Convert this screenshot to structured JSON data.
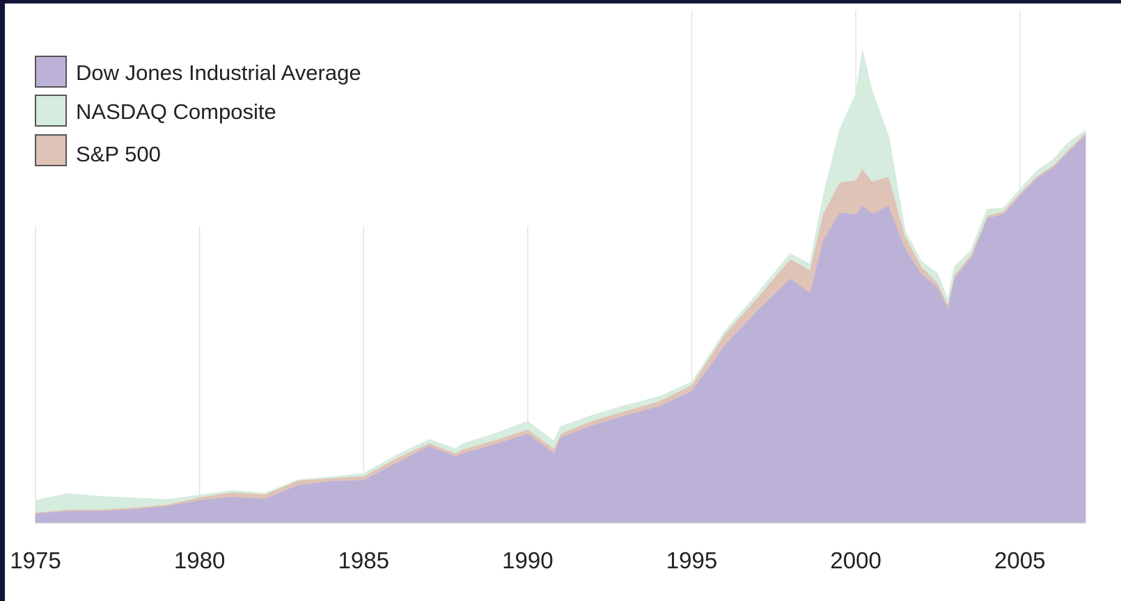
{
  "colors": {
    "dow": "#bcb2d8",
    "nasdaq": "#d6ecde",
    "sp500": "#dfc3b6",
    "legend_border": "#555555",
    "grid": "#e2e2e2",
    "background": "#ffffff"
  },
  "chart_data": {
    "type": "area",
    "stacked": true,
    "title": "",
    "xlabel": "",
    "ylabel": "",
    "xlim": [
      1975,
      2007
    ],
    "ylim": [
      0,
      100
    ],
    "y_axis_shown": false,
    "grid": "vertical lines at x ticks",
    "legend_position": "top-left",
    "x_ticks": [
      1975,
      1980,
      1985,
      1990,
      1995,
      2000,
      2005
    ],
    "x_tick_labels": [
      "1975",
      "1980",
      "1985",
      "1990",
      "1995",
      "2000",
      "2005"
    ],
    "x": [
      1975,
      1976,
      1977,
      1978,
      1979,
      1980,
      1981,
      1982,
      1983,
      1984,
      1985,
      1986,
      1987,
      1987.8,
      1988,
      1989,
      1990,
      1990.8,
      1991,
      1992,
      1993,
      1994,
      1995,
      1996,
      1997,
      1998,
      1998.6,
      1999,
      1999.5,
      2000,
      2000.2,
      2000.5,
      2001,
      2001.5,
      2002,
      2002.5,
      2002.8,
      2003,
      2003.5,
      2004,
      2004.5,
      2005,
      2005.5,
      2006,
      2006.5,
      2007
    ],
    "series": [
      {
        "name": "Dow Jones Industrial Average",
        "values": [
          2.0,
          2.5,
          2.5,
          2.9,
          3.5,
          4.7,
          5.4,
          5.0,
          7.8,
          8.6,
          8.8,
          12.3,
          15.7,
          13.6,
          14.2,
          16.1,
          18.2,
          14.3,
          17.5,
          20.0,
          22.0,
          23.8,
          26.9,
          36.2,
          43.3,
          49.8,
          46.9,
          57.6,
          63.2,
          62.8,
          64.7,
          63.0,
          64.6,
          56.0,
          50.7,
          47.9,
          43.8,
          49.8,
          53.9,
          62.0,
          62.9,
          66.7,
          70.1,
          72.3,
          75.7,
          79.0
        ]
      },
      {
        "name": "S&P 500",
        "values": [
          0.2,
          0.3,
          0.3,
          0.3,
          0.3,
          0.6,
          0.9,
          0.9,
          0.9,
          0.6,
          0.8,
          0.9,
          0.6,
          0.6,
          0.8,
          0.8,
          0.9,
          0.8,
          0.7,
          0.9,
          0.9,
          1.0,
          1.2,
          2.2,
          2.6,
          3.9,
          4.6,
          5.3,
          6.1,
          7.0,
          7.4,
          6.5,
          5.9,
          2.5,
          1.5,
          0.9,
          0.8,
          0.7,
          0.6,
          0.6,
          0.5,
          0.5,
          0.4,
          0.4,
          0.4,
          0.4
        ]
      },
      {
        "name": "NASDAQ Composite",
        "values": [
          2.4,
          3.2,
          2.6,
          1.9,
          1.0,
          0.4,
          0.3,
          0.2,
          0.1,
          0.2,
          0.5,
          0.6,
          0.7,
          0.9,
          1.1,
          1.3,
          1.6,
          1.6,
          1.4,
          1.1,
          1.1,
          0.9,
          0.6,
          0.6,
          0.8,
          1.1,
          1.2,
          3.4,
          10.6,
          17.4,
          24.1,
          18.3,
          8.2,
          1.0,
          1.0,
          1.9,
          1.0,
          1.6,
          0.9,
          1.2,
          0.7,
          0.7,
          1.0,
          1.2,
          1.4,
          0.5
        ]
      }
    ]
  }
}
